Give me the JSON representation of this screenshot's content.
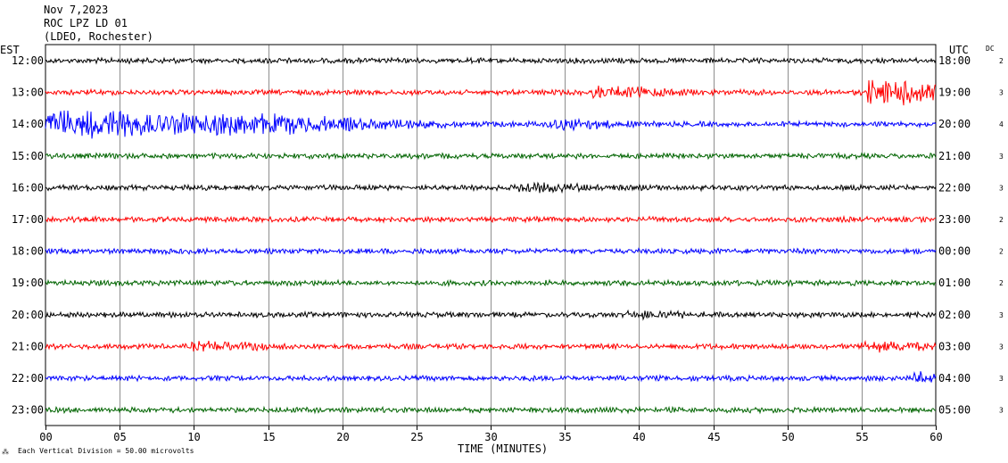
{
  "header": {
    "date": "Nov 7,2023",
    "station": "ROC LPZ LD 01",
    "network": "(LDEO, Rochester)"
  },
  "chart_data": {
    "type": "line",
    "left_axis_label": "EST",
    "right_axis_label": "UTC",
    "dc_header": "DC",
    "xlabel": "TIME (MINUTES)",
    "x_ticks": [
      "00",
      "05",
      "10",
      "15",
      "20",
      "25",
      "30",
      "35",
      "40",
      "45",
      "50",
      "55",
      "60"
    ],
    "xlim": [
      0,
      60
    ],
    "grid_vertical_every_minutes": 5,
    "scale_note": "Each Vertical Division =   50.00 microvolts",
    "trace_colors": [
      "#000000",
      "#ff0000",
      "#0000ff",
      "#006400"
    ],
    "rows": [
      {
        "est": "12:00",
        "utc": "18:00",
        "dc": "2"
      },
      {
        "est": "13:00",
        "utc": "19:00",
        "dc": "3"
      },
      {
        "est": "14:00",
        "utc": "20:00",
        "dc": "4"
      },
      {
        "est": "15:00",
        "utc": "21:00",
        "dc": "3"
      },
      {
        "est": "16:00",
        "utc": "22:00",
        "dc": "3"
      },
      {
        "est": "17:00",
        "utc": "23:00",
        "dc": "2"
      },
      {
        "est": "18:00",
        "utc": "00:00",
        "dc": "2"
      },
      {
        "est": "19:00",
        "utc": "01:00",
        "dc": "2"
      },
      {
        "est": "20:00",
        "utc": "02:00",
        "dc": "3"
      },
      {
        "est": "21:00",
        "utc": "03:00",
        "dc": "3"
      },
      {
        "est": "22:00",
        "utc": "04:00",
        "dc": "3"
      },
      {
        "est": "23:00",
        "utc": "05:00",
        "dc": "3"
      }
    ]
  }
}
